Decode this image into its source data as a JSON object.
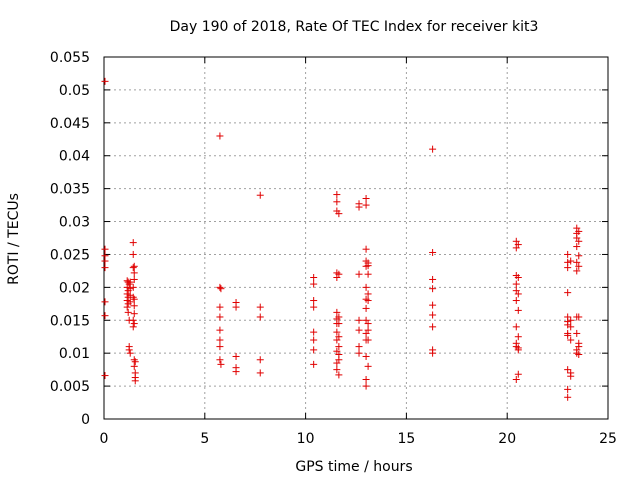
{
  "chart_data": {
    "type": "scatter",
    "title": "Day 190 of 2018, Rate Of TEC Index for receiver kit3",
    "xlabel": "GPS time / hours",
    "ylabel": "ROTI / TECUs",
    "xlim": [
      0,
      25
    ],
    "ylim": [
      0,
      0.055
    ],
    "xticks": [
      0,
      5,
      10,
      15,
      20,
      25
    ],
    "xtick_labels": [
      "0",
      "5",
      "10",
      "15",
      "20",
      "25"
    ],
    "yticks": [
      0,
      0.005,
      0.01,
      0.015,
      0.02,
      0.025,
      0.03,
      0.035,
      0.04,
      0.045,
      0.05,
      0.055
    ],
    "ytick_labels": [
      "0",
      "0.005",
      "0.01",
      "0.015",
      "0.02",
      "0.025",
      "0.03",
      "0.035",
      "0.04",
      "0.045",
      "0.05",
      "0.055"
    ],
    "grid": true,
    "marker": "+",
    "marker_color": "#e00000",
    "series": [
      {
        "name": "kit3",
        "x": [
          0.05,
          0.05,
          0.05,
          0.05,
          0.05,
          0.05,
          0.05,
          0.05,
          1.15,
          1.15,
          1.15,
          1.15,
          1.15,
          1.2,
          1.2,
          1.2,
          1.2,
          1.2,
          1.25,
          1.25,
          1.25,
          1.25,
          1.3,
          1.3,
          1.3,
          1.3,
          1.3,
          1.45,
          1.45,
          1.45,
          1.45,
          1.45,
          1.45,
          1.45,
          1.5,
          1.5,
          1.5,
          1.5,
          1.5,
          1.5,
          1.5,
          1.5,
          1.5,
          1.55,
          1.55,
          1.55,
          1.55,
          5.75,
          5.75,
          5.75,
          5.75,
          5.75,
          5.75,
          5.75,
          5.75,
          5.8,
          5.8,
          6.55,
          6.55,
          6.55,
          6.55,
          6.55,
          7.75,
          7.75,
          7.75,
          7.75,
          7.75,
          10.4,
          10.4,
          10.4,
          10.4,
          10.4,
          10.4,
          10.4,
          10.4,
          11.55,
          11.55,
          11.55,
          11.55,
          11.55,
          11.55,
          11.55,
          11.55,
          11.55,
          11.55,
          11.55,
          11.55,
          11.55,
          11.65,
          11.65,
          11.65,
          11.65,
          11.65,
          11.65,
          11.65,
          11.65,
          11.65,
          12.65,
          12.65,
          12.65,
          12.65,
          12.65,
          12.65,
          12.65,
          13.0,
          13.0,
          13.0,
          13.0,
          13.0,
          13.0,
          13.0,
          13.0,
          13.0,
          13.0,
          13.0,
          13.0,
          13.0,
          13.0,
          13.1,
          13.1,
          13.1,
          13.1,
          13.1,
          13.1,
          13.1,
          13.1,
          13.1,
          16.3,
          16.3,
          16.3,
          16.3,
          16.3,
          16.3,
          16.3,
          16.3,
          16.3,
          20.45,
          20.45,
          20.45,
          20.45,
          20.45,
          20.45,
          20.45,
          20.45,
          20.45,
          20.45,
          20.55,
          20.55,
          20.55,
          20.55,
          20.55,
          20.55,
          20.55,
          20.55,
          23.0,
          23.0,
          23.0,
          23.0,
          23.0,
          23.0,
          23.0,
          23.0,
          23.0,
          23.0,
          23.0,
          23.0,
          23.15,
          23.15,
          23.15,
          23.15,
          23.15,
          23.15,
          23.45,
          23.45,
          23.45,
          23.45,
          23.45,
          23.45,
          23.45,
          23.45,
          23.45,
          23.45,
          23.55,
          23.55,
          23.55,
          23.55,
          23.55,
          23.55,
          23.55,
          23.55
        ],
        "y": [
          0.0513,
          0.0258,
          0.0248,
          0.024,
          0.023,
          0.0178,
          0.0157,
          0.0066,
          0.021,
          0.02,
          0.019,
          0.018,
          0.017,
          0.0208,
          0.0195,
          0.0185,
          0.0175,
          0.0162,
          0.0205,
          0.015,
          0.011,
          0.0105,
          0.0208,
          0.0198,
          0.0188,
          0.0178,
          0.01,
          0.0268,
          0.025,
          0.023,
          0.02,
          0.0185,
          0.015,
          0.014,
          0.0232,
          0.0222,
          0.0212,
          0.0182,
          0.0172,
          0.016,
          0.0145,
          0.009,
          0.008,
          0.0087,
          0.007,
          0.0063,
          0.0058,
          0.043,
          0.02,
          0.017,
          0.0155,
          0.0135,
          0.012,
          0.011,
          0.009,
          0.0198,
          0.0083,
          0.0177,
          0.017,
          0.0095,
          0.0078,
          0.0072,
          0.034,
          0.017,
          0.0155,
          0.009,
          0.007,
          0.0215,
          0.0205,
          0.018,
          0.017,
          0.0132,
          0.012,
          0.0105,
          0.0083,
          0.0341,
          0.033,
          0.0316,
          0.0222,
          0.0215,
          0.0162,
          0.0152,
          0.0145,
          0.0132,
          0.012,
          0.0103,
          0.0085,
          0.0075,
          0.0312,
          0.022,
          0.0155,
          0.0145,
          0.0125,
          0.011,
          0.0098,
          0.009,
          0.0067,
          0.0327,
          0.0322,
          0.022,
          0.015,
          0.0135,
          0.011,
          0.01,
          0.0335,
          0.0325,
          0.0258,
          0.024,
          0.0232,
          0.02,
          0.0182,
          0.0168,
          0.015,
          0.013,
          0.012,
          0.0095,
          0.006,
          0.005,
          0.0237,
          0.0233,
          0.022,
          0.019,
          0.018,
          0.0145,
          0.0135,
          0.012,
          0.008,
          0.041,
          0.0253,
          0.0212,
          0.0198,
          0.0173,
          0.0158,
          0.014,
          0.0105,
          0.01,
          0.027,
          0.026,
          0.0218,
          0.0205,
          0.0195,
          0.018,
          0.014,
          0.0115,
          0.011,
          0.006,
          0.0265,
          0.0215,
          0.019,
          0.0165,
          0.0125,
          0.0108,
          0.0105,
          0.0068,
          0.025,
          0.0238,
          0.023,
          0.0192,
          0.0155,
          0.0148,
          0.0143,
          0.013,
          0.0127,
          0.0075,
          0.0045,
          0.0033,
          0.024,
          0.015,
          0.014,
          0.012,
          0.007,
          0.0065,
          0.029,
          0.0282,
          0.0275,
          0.0262,
          0.0238,
          0.0225,
          0.0155,
          0.013,
          0.0105,
          0.01,
          0.0285,
          0.027,
          0.0248,
          0.0232,
          0.0155,
          0.0115,
          0.011,
          0.0098
        ]
      }
    ]
  }
}
